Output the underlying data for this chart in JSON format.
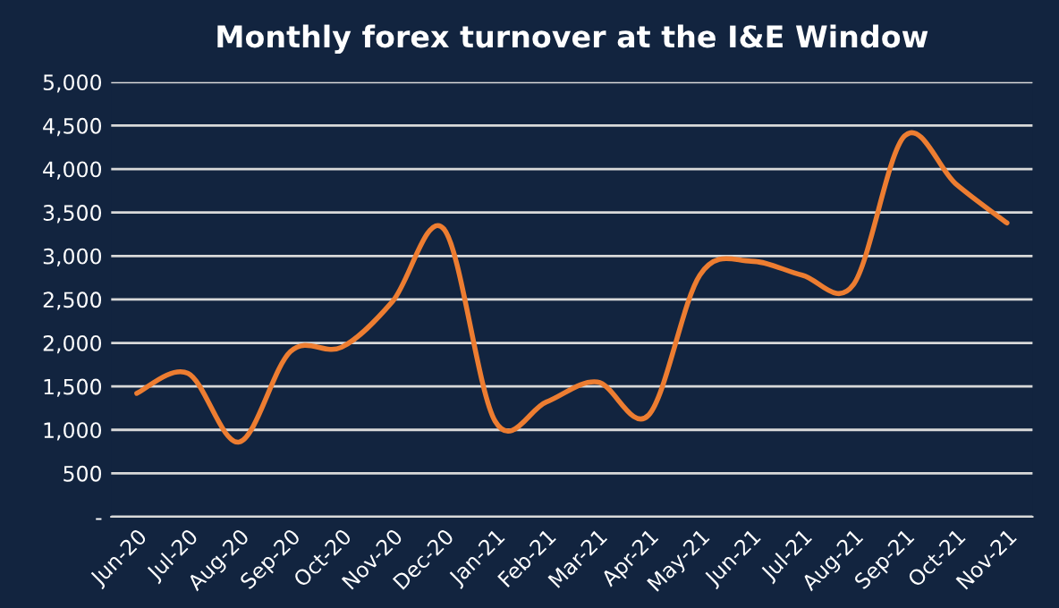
{
  "chart_data": {
    "type": "line",
    "title": "Monthly forex turnover at the I&E Window",
    "categories": [
      "Jun-20",
      "Jul-20",
      "Aug-20",
      "Sep-20",
      "Oct-20",
      "Nov-20",
      "Dec-20",
      "Jan-21",
      "Feb-21",
      "Mar-21",
      "Apr-21",
      "May-21",
      "Jun-21",
      "Jul-21",
      "Aug-21",
      "Sep-21",
      "Oct-21",
      "Nov-21"
    ],
    "series": [
      {
        "color": "#ed7d31",
        "values": [
          1420,
          1650,
          860,
          1900,
          1950,
          2480,
          3310,
          1100,
          1320,
          1550,
          1170,
          2780,
          2940,
          2780,
          2670,
          4380,
          3830,
          3380
        ]
      }
    ],
    "ylim": [
      0,
      5000
    ],
    "yticks": [
      {
        "value": 0,
        "label": "-"
      },
      {
        "value": 500,
        "label": "500"
      },
      {
        "value": 1000,
        "label": "1,000"
      },
      {
        "value": 1500,
        "label": "1,500"
      },
      {
        "value": 2000,
        "label": "2,000"
      },
      {
        "value": 2500,
        "label": "2,500"
      },
      {
        "value": 3000,
        "label": "3,000"
      },
      {
        "value": 3500,
        "label": "3,500"
      },
      {
        "value": 4000,
        "label": "4,000"
      },
      {
        "value": 4500,
        "label": "4,500"
      },
      {
        "value": 5000,
        "label": "5,000"
      }
    ],
    "grid": "y",
    "legend": false,
    "marker": "none",
    "line_style": "solid"
  }
}
